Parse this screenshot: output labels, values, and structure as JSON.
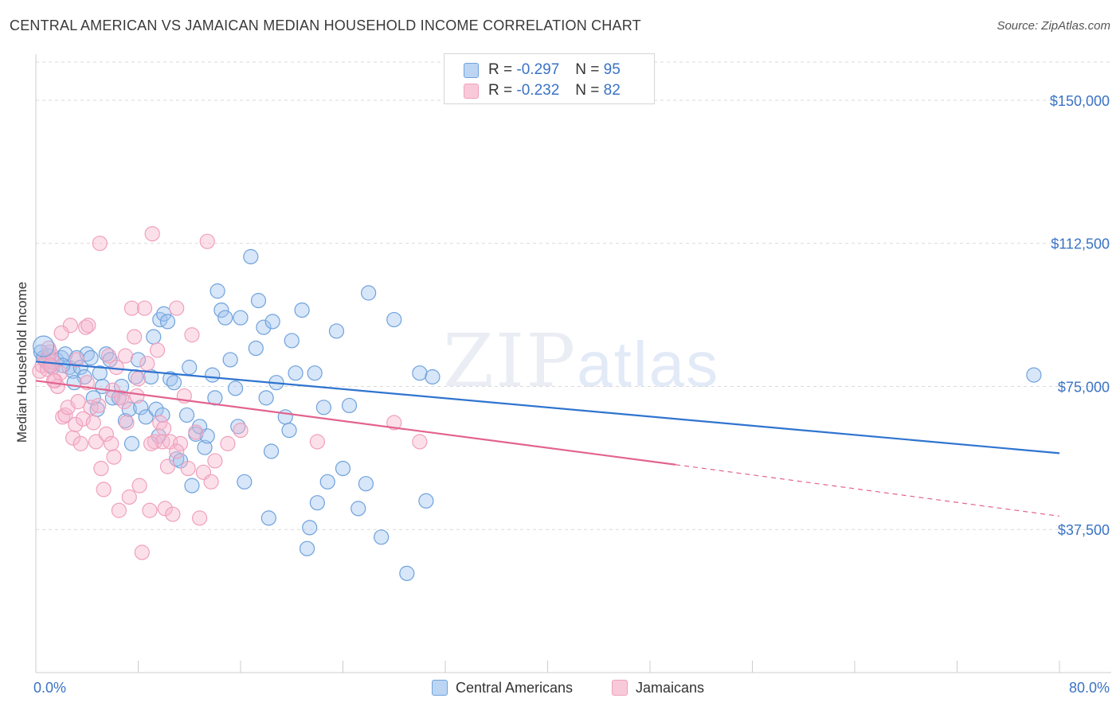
{
  "title": "CENTRAL AMERICAN VS JAMAICAN MEDIAN HOUSEHOLD INCOME CORRELATION CHART",
  "source": "Source: ZipAtlas.com",
  "watermark": {
    "zip": "ZIP",
    "atlas": "atlas"
  },
  "legend": {
    "rows": [
      {
        "r_label": "R = ",
        "r_value": "-0.297",
        "n_label": "N = ",
        "n_value": "95"
      },
      {
        "r_label": "R = ",
        "r_value": "-0.232",
        "n_label": "N = ",
        "n_value": "82"
      }
    ]
  },
  "bottom_legend": [
    "Central Americans",
    "Jamaicans"
  ],
  "colors": {
    "blue": "#6fa2dc",
    "blue_line": "#2f74d0",
    "pink": "#f0a0bc",
    "pink_line": "#e2638e",
    "tick_label": "#3a73c4",
    "grid": "#d9d9d9"
  },
  "chart_data": {
    "type": "scatter",
    "xlabel": "",
    "ylabel": "Median Household Income",
    "xlim": [
      0,
      80
    ],
    "ylim": [
      0,
      160000
    ],
    "x_tick_labels": [
      "0.0%",
      "80.0%"
    ],
    "y_ticks": [
      37500,
      75000,
      112500,
      150000
    ],
    "y_tick_labels": [
      "$37,500",
      "$75,000",
      "$112,500",
      "$150,000"
    ],
    "grid": "horizontal dashed",
    "series": [
      {
        "name": "Central Americans",
        "color": "blue",
        "points": [
          [
            0.4,
            84000
          ],
          [
            0.6,
            82500
          ],
          [
            0.8,
            81500
          ],
          [
            1.0,
            83000
          ],
          [
            1.3,
            80000
          ],
          [
            1.6,
            82000
          ],
          [
            2.0,
            82500
          ],
          [
            2.3,
            83500
          ],
          [
            2.6,
            80000
          ],
          [
            2.9,
            79000
          ],
          [
            3.2,
            82500
          ],
          [
            3.5,
            80000
          ],
          [
            3.8,
            77500
          ],
          [
            4.0,
            83500
          ],
          [
            4.3,
            82500
          ],
          [
            4.5,
            72000
          ],
          [
            4.8,
            69000
          ],
          [
            5.0,
            78500
          ],
          [
            5.2,
            75000
          ],
          [
            5.5,
            83500
          ],
          [
            5.8,
            82000
          ],
          [
            6.0,
            72000
          ],
          [
            6.5,
            72000
          ],
          [
            6.7,
            75000
          ],
          [
            7.0,
            66000
          ],
          [
            7.3,
            69000
          ],
          [
            7.5,
            60000
          ],
          [
            7.8,
            77500
          ],
          [
            8.0,
            82000
          ],
          [
            8.2,
            69500
          ],
          [
            8.6,
            67000
          ],
          [
            9.0,
            77500
          ],
          [
            9.2,
            88000
          ],
          [
            9.4,
            69000
          ],
          [
            9.7,
            92500
          ],
          [
            9.9,
            67500
          ],
          [
            10.0,
            94000
          ],
          [
            10.3,
            92000
          ],
          [
            10.5,
            77000
          ],
          [
            10.8,
            76000
          ],
          [
            11.0,
            56000
          ],
          [
            11.3,
            55500
          ],
          [
            11.8,
            67500
          ],
          [
            12.0,
            80000
          ],
          [
            12.5,
            62500
          ],
          [
            12.8,
            64500
          ],
          [
            13.2,
            59000
          ],
          [
            13.4,
            62000
          ],
          [
            13.8,
            78000
          ],
          [
            14.0,
            72000
          ],
          [
            14.2,
            100000
          ],
          [
            14.5,
            95000
          ],
          [
            14.8,
            93000
          ],
          [
            15.2,
            82000
          ],
          [
            15.6,
            74500
          ],
          [
            15.8,
            64500
          ],
          [
            16.0,
            93000
          ],
          [
            16.3,
            50000
          ],
          [
            16.8,
            109000
          ],
          [
            17.2,
            85000
          ],
          [
            17.4,
            97500
          ],
          [
            17.8,
            90500
          ],
          [
            18.0,
            72000
          ],
          [
            18.2,
            40500
          ],
          [
            18.5,
            92000
          ],
          [
            18.8,
            76000
          ],
          [
            19.5,
            67000
          ],
          [
            19.8,
            63500
          ],
          [
            20.0,
            87000
          ],
          [
            20.3,
            78500
          ],
          [
            20.8,
            95000
          ],
          [
            21.2,
            32500
          ],
          [
            21.4,
            38000
          ],
          [
            21.8,
            78500
          ],
          [
            22.0,
            44500
          ],
          [
            22.5,
            69500
          ],
          [
            22.8,
            50000
          ],
          [
            23.5,
            89500
          ],
          [
            24.0,
            53500
          ],
          [
            24.5,
            70000
          ],
          [
            25.2,
            43000
          ],
          [
            25.8,
            49500
          ],
          [
            26.0,
            99500
          ],
          [
            27.0,
            35500
          ],
          [
            28.0,
            92500
          ],
          [
            29.0,
            26000
          ],
          [
            30.0,
            78500
          ],
          [
            30.5,
            45000
          ],
          [
            31.0,
            77500
          ],
          [
            78.0,
            78000
          ],
          [
            18.4,
            58000
          ],
          [
            12.2,
            49000
          ],
          [
            1.1,
            80500
          ],
          [
            2.1,
            80500
          ],
          [
            3.0,
            76000
          ],
          [
            9.6,
            62000
          ]
        ],
        "trend": {
          "x": [
            0,
            80
          ],
          "y": [
            81500,
            57500
          ]
        }
      },
      {
        "name": "Jamaicans",
        "color": "pink",
        "points": [
          [
            0.3,
            79000
          ],
          [
            0.5,
            80500
          ],
          [
            0.7,
            82000
          ],
          [
            0.9,
            79500
          ],
          [
            1.1,
            84000
          ],
          [
            1.3,
            81500
          ],
          [
            1.5,
            76500
          ],
          [
            1.7,
            75000
          ],
          [
            1.9,
            78500
          ],
          [
            2.1,
            67000
          ],
          [
            2.3,
            67500
          ],
          [
            2.5,
            69500
          ],
          [
            2.7,
            91000
          ],
          [
            2.9,
            61500
          ],
          [
            3.1,
            65000
          ],
          [
            3.3,
            71000
          ],
          [
            3.5,
            60000
          ],
          [
            3.7,
            66500
          ],
          [
            3.9,
            90500
          ],
          [
            4.1,
            91000
          ],
          [
            4.3,
            69500
          ],
          [
            4.5,
            65500
          ],
          [
            4.7,
            60500
          ],
          [
            4.9,
            70000
          ],
          [
            5.1,
            53500
          ],
          [
            5.3,
            48000
          ],
          [
            5.5,
            62500
          ],
          [
            5.7,
            83000
          ],
          [
            5.9,
            60000
          ],
          [
            6.1,
            56500
          ],
          [
            6.3,
            80000
          ],
          [
            6.5,
            42500
          ],
          [
            6.7,
            72000
          ],
          [
            6.9,
            71000
          ],
          [
            7.1,
            65500
          ],
          [
            7.3,
            46000
          ],
          [
            7.5,
            95500
          ],
          [
            7.7,
            88000
          ],
          [
            7.9,
            72500
          ],
          [
            8.1,
            49000
          ],
          [
            8.3,
            31500
          ],
          [
            8.5,
            95500
          ],
          [
            8.7,
            81000
          ],
          [
            8.9,
            42500
          ],
          [
            9.1,
            115000
          ],
          [
            9.3,
            60500
          ],
          [
            9.5,
            84500
          ],
          [
            9.7,
            65500
          ],
          [
            9.9,
            60500
          ],
          [
            10.1,
            43000
          ],
          [
            10.3,
            54000
          ],
          [
            10.5,
            60500
          ],
          [
            10.7,
            41500
          ],
          [
            11.0,
            95500
          ],
          [
            11.3,
            60000
          ],
          [
            11.6,
            72500
          ],
          [
            11.9,
            53500
          ],
          [
            12.2,
            88500
          ],
          [
            12.5,
            63000
          ],
          [
            12.8,
            40500
          ],
          [
            13.1,
            52500
          ],
          [
            13.4,
            113000
          ],
          [
            13.7,
            50000
          ],
          [
            14.0,
            55500
          ],
          [
            15.0,
            60000
          ],
          [
            16.0,
            63500
          ],
          [
            22.0,
            60500
          ],
          [
            28.0,
            65500
          ],
          [
            30.0,
            60500
          ],
          [
            1.0,
            85000
          ],
          [
            1.2,
            80500
          ],
          [
            1.4,
            76500
          ],
          [
            2.0,
            89000
          ],
          [
            3.2,
            82000
          ],
          [
            4.0,
            76000
          ],
          [
            5.0,
            112500
          ],
          [
            6.0,
            74000
          ],
          [
            7.0,
            83000
          ],
          [
            8.0,
            77000
          ],
          [
            9.0,
            60000
          ],
          [
            10.0,
            64000
          ],
          [
            11.0,
            58000
          ]
        ],
        "trend": {
          "x": [
            0,
            50
          ],
          "y": [
            76500,
            54500
          ]
        },
        "trend_dashed": {
          "x": [
            50,
            80
          ],
          "y": [
            54500,
            41000
          ]
        }
      }
    ]
  }
}
